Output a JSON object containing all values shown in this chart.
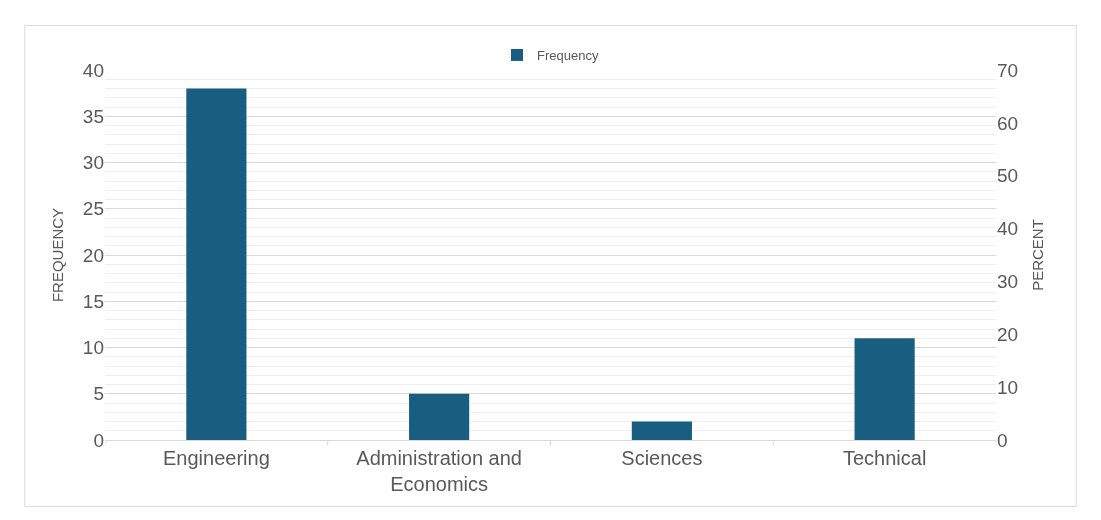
{
  "chart_data": {
    "type": "bar",
    "categories": [
      "Engineering",
      "Administration and Economics",
      "Sciences",
      "Technical"
    ],
    "series": [
      {
        "name": "Frequency",
        "color": "#175e80",
        "values": [
          38,
          5,
          2,
          11
        ]
      }
    ],
    "ylabel": "FREQUENCY",
    "y2label": "PERCENT",
    "ylim": [
      0,
      40
    ],
    "yticks": [
      0,
      5,
      10,
      15,
      20,
      25,
      30,
      35,
      40
    ],
    "y2lim": [
      0,
      70
    ],
    "y2ticks": [
      0,
      10,
      20,
      30,
      40,
      50,
      60,
      70
    ],
    "grid": "y",
    "legend": "top"
  }
}
